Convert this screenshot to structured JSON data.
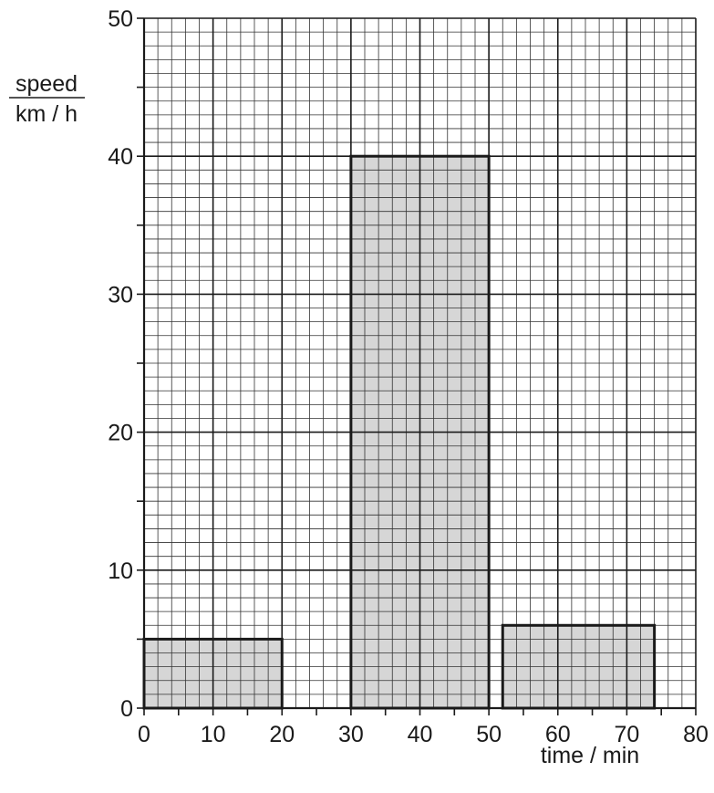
{
  "chart_data": {
    "type": "bar",
    "title": "",
    "xlabel": "time / min",
    "ylabel_line1": "speed",
    "ylabel_line2": "km / h",
    "xlim": [
      0,
      80
    ],
    "ylim": [
      0,
      50
    ],
    "x_ticks": [
      "0",
      "10",
      "20",
      "30",
      "40",
      "50",
      "60",
      "70",
      "80"
    ],
    "y_ticks": [
      "0",
      "10",
      "20",
      "30",
      "40",
      "50"
    ],
    "grid": true,
    "bar_fill": "#d6d6d6",
    "bars": [
      {
        "x_start": 0,
        "x_end": 20,
        "value": 5
      },
      {
        "x_start": 30,
        "x_end": 50,
        "value": 40
      },
      {
        "x_start": 52,
        "x_end": 74,
        "value": 6
      }
    ]
  }
}
